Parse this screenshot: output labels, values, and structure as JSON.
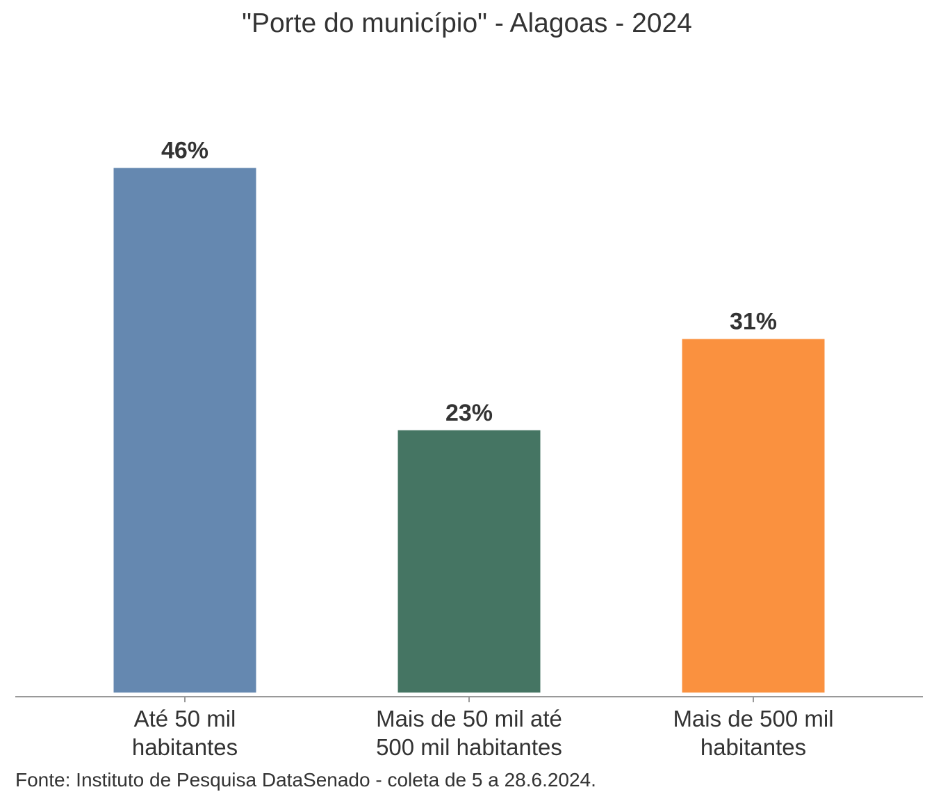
{
  "chart_data": {
    "type": "bar",
    "title": "\"Porte do município\" - Alagoas - 2024",
    "categories": [
      [
        "Até 50 mil",
        "habitantes"
      ],
      [
        "Mais de 50 mil até",
        "500 mil habitantes"
      ],
      [
        "Mais de 500 mil",
        "habitantes"
      ]
    ],
    "values": [
      46,
      23,
      31
    ],
    "value_labels": [
      "46%",
      "23%",
      "31%"
    ],
    "colors": [
      "#6588b0",
      "#457563",
      "#fa913f"
    ],
    "ylim": [
      0,
      50
    ],
    "grid": false,
    "legend": "none"
  },
  "source": "Fonte: Instituto de Pesquisa DataSenado - coleta de 5 a 28.6.2024."
}
